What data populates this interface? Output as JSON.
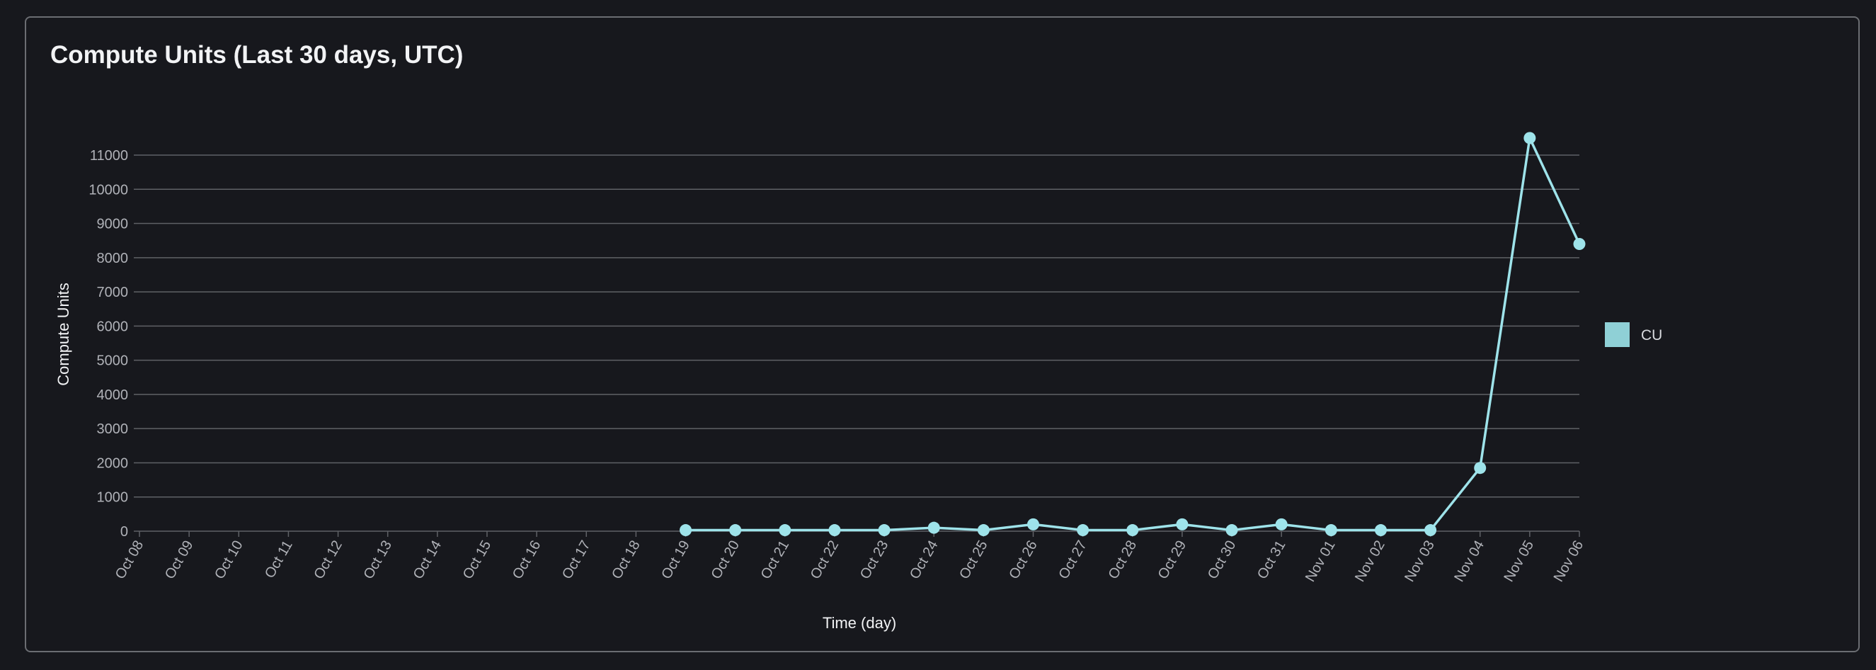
{
  "card": {
    "title": "Compute Units (Last 30 days, UTC)"
  },
  "colors": {
    "background": "#17181d",
    "gridline": "#5f6166",
    "series_line": "#9ee3ea",
    "legend_swatch": "#8fd0d6",
    "text_primary": "#f2f3f5",
    "text_muted": "#b0b2b8"
  },
  "chart_data": {
    "type": "line",
    "title": "Compute Units (Last 30 days, UTC)",
    "xlabel": "Time (day)",
    "ylabel": "Compute Units",
    "ylim": [
      0,
      11000
    ],
    "yticks": [
      0,
      1000,
      2000,
      3000,
      4000,
      5000,
      6000,
      7000,
      8000,
      9000,
      10000,
      11000
    ],
    "categories": [
      "Oct 08",
      "Oct 09",
      "Oct 10",
      "Oct 11",
      "Oct 12",
      "Oct 13",
      "Oct 14",
      "Oct 15",
      "Oct 16",
      "Oct 17",
      "Oct 18",
      "Oct 19",
      "Oct 20",
      "Oct 21",
      "Oct 22",
      "Oct 23",
      "Oct 24",
      "Oct 25",
      "Oct 26",
      "Oct 27",
      "Oct 28",
      "Oct 29",
      "Oct 30",
      "Oct 31",
      "Nov 01",
      "Nov 02",
      "Nov 03",
      "Nov 04",
      "Nov 05",
      "Nov 06"
    ],
    "series": [
      {
        "name": "CU",
        "values": [
          null,
          null,
          null,
          null,
          null,
          null,
          null,
          null,
          null,
          null,
          null,
          30,
          30,
          30,
          30,
          30,
          100,
          30,
          200,
          30,
          30,
          200,
          30,
          200,
          30,
          30,
          30,
          1850,
          11500,
          8400
        ]
      }
    ],
    "grid": true,
    "legend": "right"
  }
}
